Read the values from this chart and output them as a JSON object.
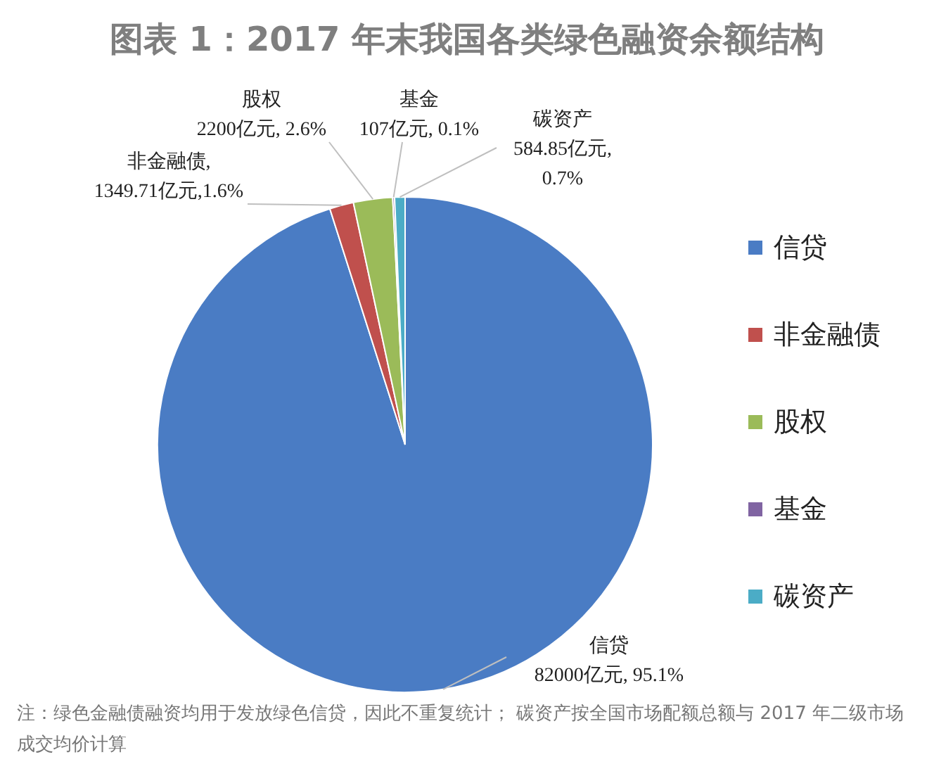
{
  "chart_data": {
    "type": "pie",
    "title": "图表 1：2017 年末我国各类绿色融资余额结构",
    "categories": [
      "信贷",
      "非金融债",
      "股权",
      "基金",
      "碳资产"
    ],
    "values": [
      82000,
      1349.71,
      2200,
      107,
      584.85
    ],
    "colors": [
      "#4a7cc4",
      "#c0504d",
      "#9bbb59",
      "#8064a2",
      "#4bacc6"
    ],
    "value_labels": [
      "信贷\n82000亿元, 95.1%",
      "非金融债,\n1349.71亿元,1.6%",
      "股权\n2200亿元, 2.6%",
      "基金\n107亿元, 0.1%",
      "碳资产\n584.85亿元,\n0.7%"
    ],
    "legend": "right",
    "annotations": [
      "注：绿色金融债融资均用于发放绿色信贷，因此不重复统计；  碳资产按全国市场配额总额与 2017 年二级市场成交均价计算"
    ]
  }
}
